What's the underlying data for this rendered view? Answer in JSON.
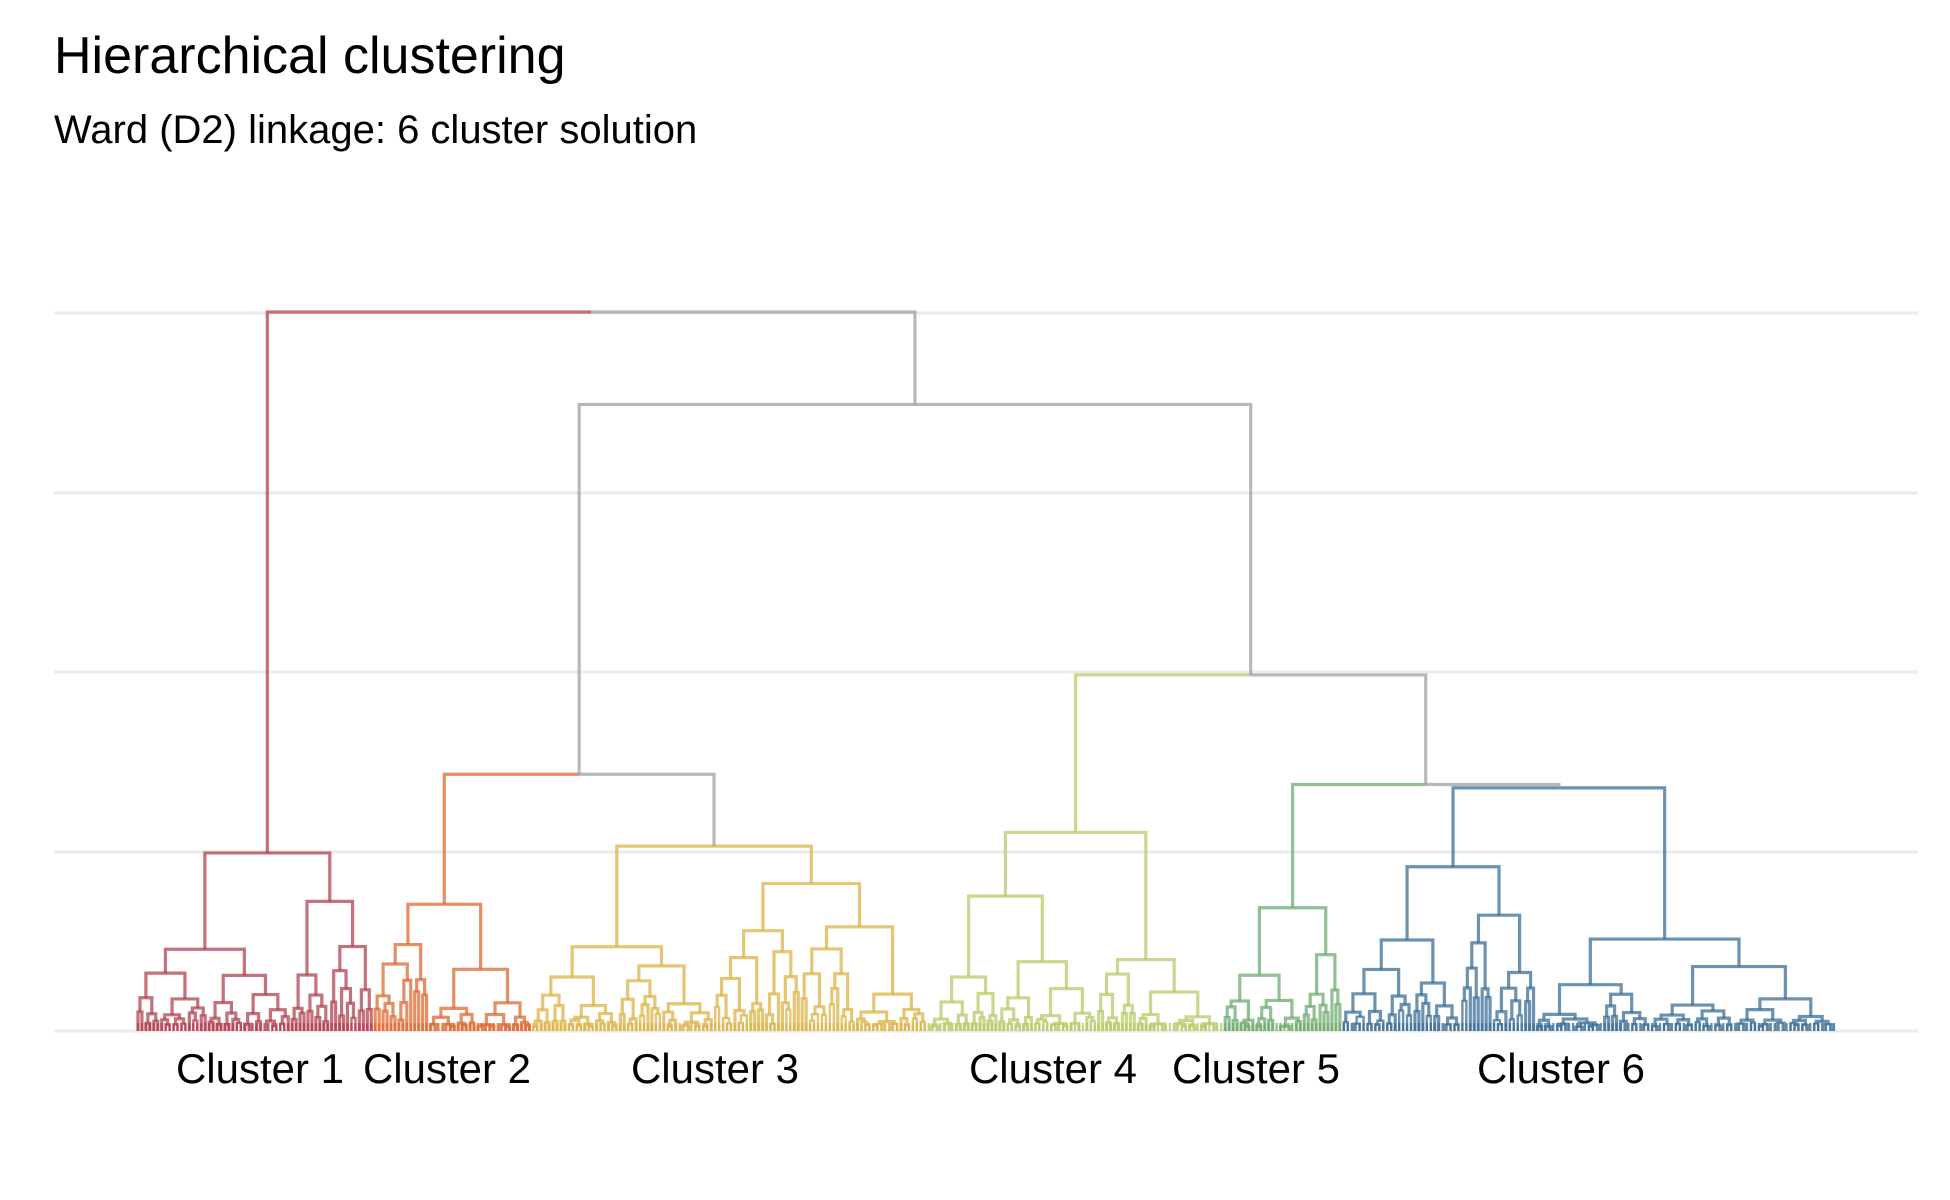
{
  "chart_data": {
    "type": "dendrogram",
    "title": "Hierarchical clustering",
    "subtitle": "Ward (D2) linkage: 6 cluster solution",
    "xlabel": "",
    "ylabel": "",
    "grid": true,
    "legend": "none",
    "y_gridlines": [
      0,
      50,
      100,
      150,
      200
    ],
    "ylim": [
      0,
      210
    ],
    "leaf_count": 430,
    "clusters": [
      {
        "label": "Cluster 1",
        "color": "#b2404f",
        "leaves": [
          0,
          60
        ],
        "root_height": 52,
        "merge_heights": [
          52,
          46,
          40,
          31,
          31,
          29,
          20,
          20,
          20,
          18,
          17
        ]
      },
      {
        "label": "Cluster 2",
        "color": "#dd6a31",
        "leaves": [
          60,
          100
        ],
        "root_height": 37,
        "merge_heights": [
          37,
          27,
          20,
          18,
          16,
          12,
          10
        ]
      },
      {
        "label": "Cluster 3",
        "color": "#dcb346",
        "leaves": [
          100,
          200
        ],
        "root_height": 54,
        "merge_heights": [
          54,
          31,
          30,
          23,
          22,
          21,
          20,
          18,
          17,
          16
        ]
      },
      {
        "label": "Cluster 4",
        "color": "#b6cb68",
        "leaves": [
          200,
          275
        ],
        "root_height": 58,
        "merge_heights": [
          58,
          31,
          30,
          28,
          27,
          20,
          19,
          18,
          17,
          16
        ]
      },
      {
        "label": "Cluster 5",
        "color": "#6fab6d",
        "leaves": [
          275,
          305
        ],
        "root_height": 36,
        "merge_heights": [
          36,
          28,
          25,
          22,
          19,
          17
        ]
      },
      {
        "label": "Cluster 6",
        "color": "#3b6e97",
        "leaves": [
          305,
          430
        ],
        "root_height": 71,
        "merge_heights": [
          71,
          69,
          62,
          60,
          56,
          52,
          48,
          46,
          45,
          42,
          40,
          38,
          36,
          34,
          32,
          30
        ]
      }
    ],
    "upper_merges": [
      {
        "left": "Cluster 2",
        "right": "Cluster 3",
        "height": 75
      },
      {
        "left": "Cluster 5",
        "right": "Cluster 6",
        "height": 72
      },
      {
        "left": "Cluster 4",
        "right": "Cluster 5+6",
        "height": 104
      },
      {
        "left": "Cluster 2+3",
        "right": "Cluster 4+5+6",
        "height": 183
      },
      {
        "left": "Cluster 1",
        "right": "Cluster 2-6",
        "height": 210
      }
    ],
    "upper_color": "#a0a0a0"
  }
}
